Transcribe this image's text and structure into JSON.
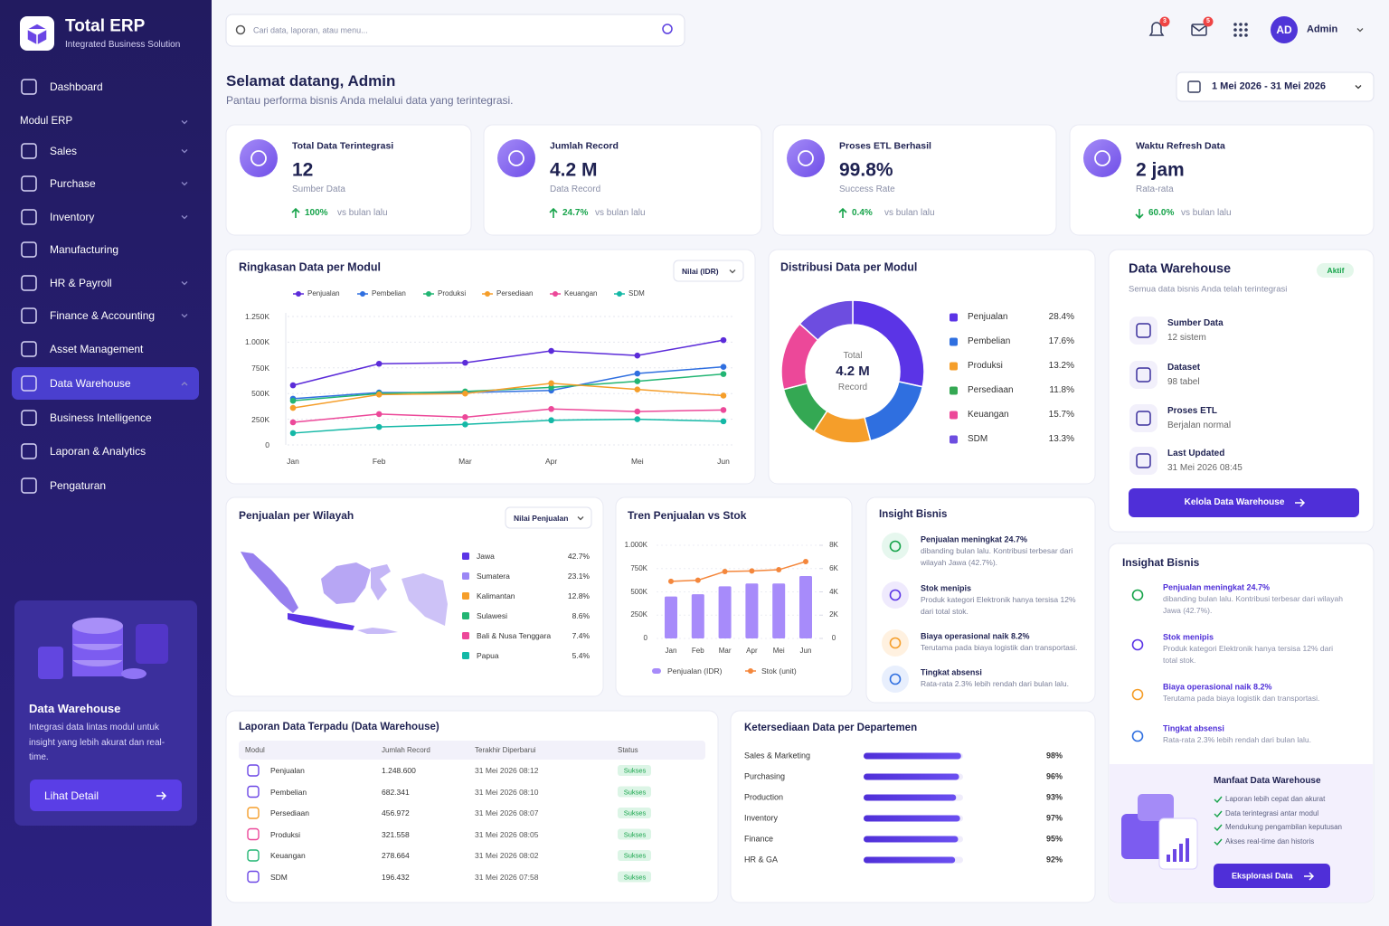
{
  "sidebar": {
    "brand": "Total ERP",
    "tagline": "Integrated Business Solution",
    "section": {
      "label": "Modul ERP",
      "submenu": true
    },
    "items": [
      {
        "label": "Dashboard"
      },
      {
        "label": "Sales",
        "submenu": true
      },
      {
        "label": "Purchase",
        "submenu": true
      },
      {
        "label": "Inventory",
        "submenu": true
      },
      {
        "label": "Manufacturing"
      },
      {
        "label": "HR & Payroll",
        "submenu": true
      },
      {
        "label": "Finance & Accounting",
        "submenu": true
      },
      {
        "label": "Asset Management"
      },
      {
        "label": "Data Warehouse",
        "submenu": true,
        "active": true
      },
      {
        "label": "Business Intelligence"
      },
      {
        "label": "Laporan & Analytics"
      },
      {
        "label": "Pengaturan"
      }
    ],
    "promo": {
      "title": "Data Warehouse",
      "text": "Integrasi data lintas modul untuk insight yang lebih akurat dan real-time.",
      "button": "Lihat Detail"
    }
  },
  "header": {
    "search_placeholder": "Cari data, laporan, atau menu...",
    "notifications": "3",
    "messages": "5",
    "avatar": "AD",
    "user": "Admin",
    "greeting": "Selamat datang, Admin",
    "subtitle": "Pantau performa bisnis Anda melalui data yang terintegrasi.",
    "date_range": "1 Mei 2026 - 31 Mei 2026"
  },
  "kpis": [
    {
      "label": "Total Data Terintegrasi",
      "value": "12",
      "sub": "Sumber Data",
      "change": "100%",
      "compare": "vs bulan lalu",
      "trend": "up"
    },
    {
      "label": "Jumlah Record",
      "value": "4.2 M",
      "sub": "Data Record",
      "change": "24.7%",
      "compare": "vs bulan lalu",
      "trend": "up"
    },
    {
      "label": "Proses ETL Berhasil",
      "value": "99.8%",
      "sub": "Success Rate",
      "change": "0.4%",
      "compare": "vs bulan lalu",
      "trend": "up"
    },
    {
      "label": "Waktu Refresh Data",
      "value": "2 jam",
      "sub": "Rata-rata",
      "change": "60.0%",
      "compare": "vs bulan lalu",
      "trend": "down"
    }
  ],
  "chart_data": [
    {
      "type": "line",
      "title": "Ringkasan Data per Modul",
      "control": "Nilai (IDR)",
      "categories": [
        "Jan",
        "Feb",
        "Mar",
        "Apr",
        "Mei",
        "Jun"
      ],
      "series": [
        {
          "name": "Penjualan",
          "color": "#5b2bd9",
          "values": [
            580000,
            790000,
            800000,
            915000,
            870000,
            1020000
          ]
        },
        {
          "name": "Pembelian",
          "color": "#2f6fe0",
          "values": [
            450000,
            510000,
            510000,
            530000,
            695000,
            760000
          ]
        },
        {
          "name": "Produksi",
          "color": "#22b573",
          "values": [
            430000,
            500000,
            520000,
            560000,
            620000,
            690000
          ]
        },
        {
          "name": "Persediaan",
          "color": "#f59e2a",
          "values": [
            360000,
            490000,
            500000,
            600000,
            540000,
            480000
          ]
        },
        {
          "name": "Keuangan",
          "color": "#ec4899",
          "values": [
            220000,
            300000,
            270000,
            350000,
            325000,
            340000
          ]
        },
        {
          "name": "SDM",
          "color": "#14b8a6",
          "values": [
            115000,
            175000,
            200000,
            240000,
            250000,
            230000
          ]
        }
      ],
      "ylim": [
        0,
        1250000
      ],
      "yticks": [
        0,
        {
          "value": 250000,
          "label": "250K"
        },
        {
          "value": 500000,
          "label": "500K"
        },
        {
          "value": 750000,
          "label": "750K"
        },
        {
          "value": 1000000,
          "label": "1.000K"
        },
        {
          "value": 1250000,
          "label": "1.250K"
        }
      ],
      "grid": true
    },
    {
      "type": "pie",
      "donut": true,
      "title": "Distribusi Data per Modul",
      "center_label": "Total",
      "center_value": "4.2 M",
      "center_unit": "Record",
      "categories": [
        "Penjualan",
        "Pembelian",
        "Produksi",
        "Persediaan",
        "Keuangan",
        "SDM"
      ],
      "values": [
        28.4,
        17.6,
        13.2,
        11.8,
        15.7,
        13.3
      ],
      "value_labels": [
        "28.4%",
        "17.6%",
        "13.2%",
        "11.8%",
        "15.7%",
        "13.3%"
      ],
      "colors": [
        "#5b34e6",
        "#2f6fe0",
        "#f59e2a",
        "#34a853",
        "#ec4899",
        "#6d4de0"
      ]
    },
    {
      "type": "map",
      "title": "Penjualan per Wilayah",
      "control": "Nilai Penjualan",
      "categories": [
        "Jawa",
        "Sumatera",
        "Kalimantan",
        "Sulawesi",
        "Bali & Nusa Tenggara",
        "Papua"
      ],
      "values": [
        42.7,
        23.1,
        12.8,
        8.6,
        7.4,
        5.4
      ],
      "value_labels": [
        "42.7%",
        "23.1%",
        "12.8%",
        "8.6%",
        "7.4%",
        "5.4%"
      ],
      "colors": [
        "#5b34e6",
        "#9b87f5",
        "#f59e2a",
        "#22b573",
        "#ec4899",
        "#14b8a6"
      ]
    },
    {
      "type": "combo",
      "title": "Tren Penjualan vs Stok",
      "categories": [
        "Jan",
        "Feb",
        "Mar",
        "Apr",
        "Mei",
        "Jun"
      ],
      "series": [
        {
          "name": "Penjualan (IDR)",
          "kind": "bar",
          "color": "#a78bfa",
          "values": [
            450000,
            475000,
            560000,
            590000,
            590000,
            670000
          ]
        },
        {
          "name": "Stok (unit)",
          "kind": "line",
          "axis": "y2",
          "color": "#f4873c",
          "values": [
            4900,
            5000,
            5750,
            5800,
            5900,
            6600
          ]
        }
      ],
      "ylim": [
        0,
        1000000
      ],
      "yticks": [
        0,
        {
          "value": 250000,
          "label": "250K"
        },
        {
          "value": 500000,
          "label": "500K"
        },
        {
          "value": 750000,
          "label": "750K"
        },
        {
          "value": 1000000,
          "label": "1.000K"
        }
      ],
      "y2lim": [
        0,
        8000
      ],
      "y2ticks": [
        0,
        {
          "value": 2000,
          "label": "2K"
        },
        {
          "value": 4000,
          "label": "4K"
        },
        {
          "value": 6000,
          "label": "6K"
        },
        {
          "value": 8000,
          "label": "8K"
        }
      ]
    },
    {
      "type": "bar",
      "orientation": "horizontal",
      "title": "Ketersediaan Data per Departemen",
      "categories": [
        "Sales & Marketing",
        "Purchasing",
        "Production",
        "Inventory",
        "Finance",
        "HR & GA"
      ],
      "values": [
        98,
        96,
        93,
        97,
        95,
        92
      ],
      "value_labels": [
        "98%",
        "96%",
        "93%",
        "97%",
        "95%",
        "92%"
      ],
      "color": "#4f2fd8",
      "xlim": [
        0,
        100
      ]
    }
  ],
  "warehouse": {
    "title": "Data Warehouse",
    "status": "Aktif",
    "subtitle": "Semua data bisnis Anda telah terintegrasi",
    "items": [
      {
        "label": "Sumber Data",
        "value": "12 sistem"
      },
      {
        "label": "Dataset",
        "value": "98 tabel"
      },
      {
        "label": "Proses ETL",
        "value": "Berjalan normal"
      },
      {
        "label": "Last Updated",
        "value": "31 Mei 2026 08:45"
      }
    ],
    "button": "Kelola Data Warehouse"
  },
  "insights": {
    "title": "Insight Bisnis",
    "panel_title": "Insighat Bisnis",
    "items": [
      {
        "title": "Penjualan meningkat 24.7%",
        "text": "dibanding bulan lalu. Kontribusi terbesar dari wilayah Jawa (42.7%)."
      },
      {
        "title": "Stok menipis",
        "text": "Produk kategori Elektronik hanya tersisa 12% dari total stok."
      },
      {
        "title": "Biaya operasional naik 8.2%",
        "text": "Terutama pada biaya logistik dan transportasi."
      },
      {
        "title": "Tingkat absensi",
        "text": "Rata-rata 2.3% lebih rendah dari bulan lalu."
      }
    ]
  },
  "benefits": {
    "title": "Manfaat Data Warehouse",
    "items": [
      "Laporan lebih cepat dan akurat",
      "Data terintegrasi antar modul",
      "Mendukung pengambilan keputusan",
      "Akses real-time dan historis"
    ],
    "button": "Eksplorasi Data"
  },
  "table": {
    "title": "Laporan Data Terpadu (Data Warehouse)",
    "columns": [
      "Modul",
      "Jumlah Record",
      "Terakhir Diperbarui",
      "Status"
    ],
    "rows": [
      [
        "Penjualan",
        "1.248.600",
        "31 Mei 2026 08:12",
        "Sukses"
      ],
      [
        "Pembelian",
        "682.341",
        "31 Mei 2026 08:10",
        "Sukses"
      ],
      [
        "Persediaan",
        "456.972",
        "31 Mei 2026 08:07",
        "Sukses"
      ],
      [
        "Produksi",
        "321.558",
        "31 Mei 2026 08:05",
        "Sukses"
      ],
      [
        "Keuangan",
        "278.664",
        "31 Mei 2026 08:02",
        "Sukses"
      ],
      [
        "SDM",
        "196.432",
        "31 Mei 2026 07:58",
        "Sukses"
      ]
    ]
  }
}
